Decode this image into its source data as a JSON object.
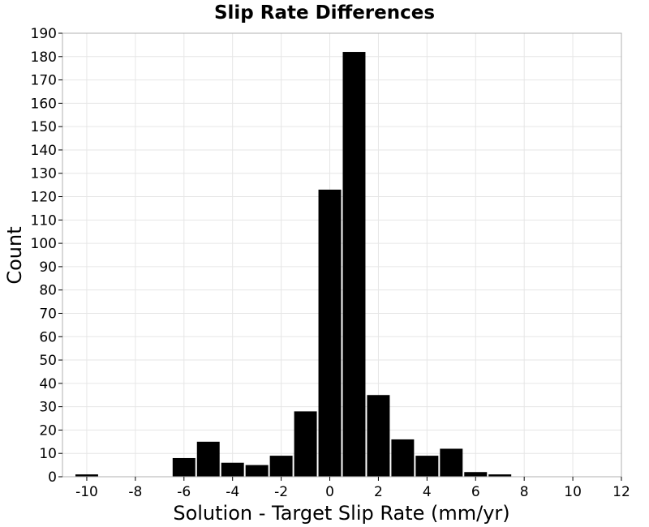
{
  "chart_data": {
    "type": "bar",
    "title": "Slip Rate Differences",
    "xlabel": "Solution - Target Slip Rate (mm/yr)",
    "ylabel": "Count",
    "xlim": [
      -11,
      12
    ],
    "ylim": [
      0,
      190
    ],
    "bin_width": 1,
    "xticks": [
      -10,
      -8,
      -6,
      -4,
      -2,
      0,
      2,
      4,
      6,
      8,
      10,
      12
    ],
    "yticks": [
      0,
      10,
      20,
      30,
      40,
      50,
      60,
      70,
      80,
      90,
      100,
      110,
      120,
      130,
      140,
      150,
      160,
      170,
      180,
      190
    ],
    "bins": [
      {
        "x": -10,
        "value": 1
      },
      {
        "x": -9,
        "value": 0
      },
      {
        "x": -8,
        "value": 0
      },
      {
        "x": -7,
        "value": 0
      },
      {
        "x": -6,
        "value": 8
      },
      {
        "x": -5,
        "value": 15
      },
      {
        "x": -4,
        "value": 6
      },
      {
        "x": -3,
        "value": 5
      },
      {
        "x": -2,
        "value": 9
      },
      {
        "x": -1,
        "value": 28
      },
      {
        "x": 0,
        "value": 123
      },
      {
        "x": 1,
        "value": 182
      },
      {
        "x": 2,
        "value": 35
      },
      {
        "x": 3,
        "value": 16
      },
      {
        "x": 4,
        "value": 9
      },
      {
        "x": 5,
        "value": 12
      },
      {
        "x": 6,
        "value": 2
      },
      {
        "x": 7,
        "value": 1
      }
    ],
    "grid": true,
    "bar_color": "#000000"
  }
}
